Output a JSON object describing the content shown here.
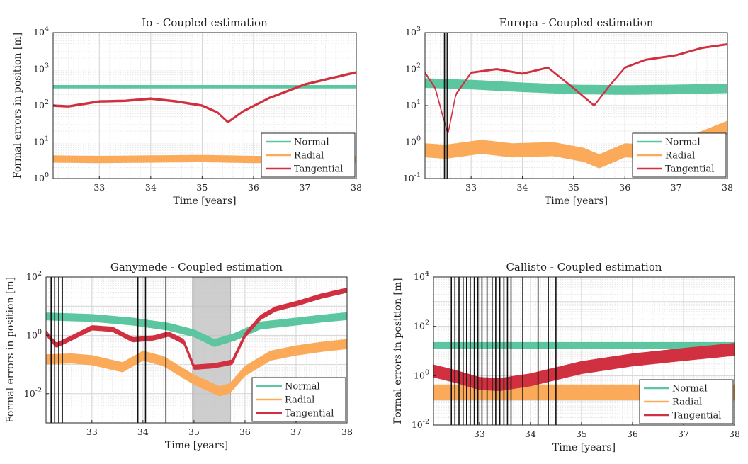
{
  "figure": {
    "background": "#ffffff"
  },
  "colors": {
    "Normal": "#5cc6a0",
    "Radial": "#fbaa5a",
    "Tangential": "#d0303f",
    "event": "#111111",
    "shade": "#bdbdbd"
  },
  "chart_data": [
    {
      "type": "line",
      "title": "Io - Coupled estimation",
      "xlabel": "Time [years]",
      "ylabel": "Formal errors in position [m]",
      "xlim": [
        32.1,
        38
      ],
      "xticks": [
        "33",
        "34",
        "35",
        "36",
        "37",
        "38"
      ],
      "ylim": [
        1,
        10000
      ],
      "yscale": "log",
      "yticks": [
        [
          1,
          "0"
        ],
        [
          10,
          "1"
        ],
        [
          100,
          "2"
        ],
        [
          1000,
          "3"
        ],
        [
          10000,
          "4"
        ]
      ],
      "grid": true,
      "legend": {
        "position": "bottom-right",
        "entries": [
          "Normal",
          "Radial",
          "Tangential"
        ]
      },
      "events": [],
      "shade": [],
      "series": [
        {
          "name": "Normal",
          "x": [
            32.1,
            38
          ],
          "y": [
            330,
            330
          ],
          "band": [
            0.92,
            1.08
          ]
        },
        {
          "name": "Radial",
          "x": [
            32.1,
            33,
            34,
            35,
            36,
            37,
            38
          ],
          "y": [
            3.5,
            3.4,
            3.5,
            3.6,
            3.4,
            3.3,
            3.4
          ],
          "band": [
            0.8,
            1.2
          ]
        },
        {
          "name": "Tangential",
          "x": [
            32.1,
            32.4,
            33,
            33.5,
            34,
            34.5,
            35,
            35.3,
            35.5,
            35.8,
            36.3,
            37,
            37.5,
            38
          ],
          "y": [
            100,
            95,
            130,
            135,
            155,
            130,
            100,
            65,
            35,
            70,
            160,
            380,
            560,
            820
          ],
          "band": [
            0.95,
            1.05
          ]
        }
      ]
    },
    {
      "type": "line",
      "title": "Europa - Coupled estimation",
      "xlabel": "Time [years]",
      "ylabel": "",
      "xlim": [
        32.1,
        38
      ],
      "xticks": [
        "33",
        "34",
        "35",
        "36",
        "37",
        "38"
      ],
      "ylim": [
        0.1,
        1000
      ],
      "yscale": "log",
      "yticks": [
        [
          0.1,
          "-1"
        ],
        [
          1,
          "0"
        ],
        [
          10,
          "1"
        ],
        [
          100,
          "2"
        ],
        [
          1000,
          "3"
        ]
      ],
      "grid": true,
      "legend": {
        "position": "bottom-right",
        "entries": [
          "Normal",
          "Radial",
          "Tangential"
        ]
      },
      "events": [
        32.48,
        32.51,
        32.54
      ],
      "shade": [],
      "series": [
        {
          "name": "Normal",
          "x": [
            32.1,
            33,
            34,
            35,
            36,
            37,
            38
          ],
          "y": [
            42,
            38,
            32,
            28,
            27,
            28,
            30
          ],
          "band": [
            0.75,
            1.3
          ]
        },
        {
          "name": "Radial",
          "x": [
            32.1,
            32.5,
            33.2,
            33.8,
            34.6,
            35.2,
            35.5,
            36,
            36.5,
            37,
            37.5,
            38
          ],
          "y": [
            0.6,
            0.55,
            0.75,
            0.6,
            0.65,
            0.45,
            0.3,
            0.6,
            0.55,
            0.75,
            1.3,
            2.5
          ],
          "band": [
            0.65,
            1.5
          ]
        },
        {
          "name": "Tangential",
          "x": [
            32.1,
            32.3,
            32.45,
            32.55,
            32.7,
            33,
            33.5,
            34,
            34.5,
            35,
            35.4,
            35.7,
            36,
            36.4,
            37,
            37.5,
            38
          ],
          "y": [
            80,
            30,
            5,
            1.7,
            20,
            80,
            100,
            75,
            110,
            30,
            10,
            35,
            110,
            180,
            240,
            380,
            480
          ],
          "band": [
            0.96,
            1.04
          ]
        }
      ]
    },
    {
      "type": "line",
      "title": "Ganymede - Coupled estimation",
      "xlabel": "Time [years]",
      "ylabel": "Formal errors in position [m]",
      "xlim": [
        32.1,
        38
      ],
      "xticks": [
        "33",
        "34",
        "35",
        "36",
        "37",
        "38"
      ],
      "ylim": [
        0.001,
        100
      ],
      "yscale": "log",
      "yticks": [
        [
          100,
          "2"
        ],
        [
          1,
          "0"
        ],
        [
          0.01,
          "-2"
        ]
      ],
      "grid": true,
      "legend": {
        "position": "bottom-right",
        "entries": [
          "Normal",
          "Radial",
          "Tangential"
        ]
      },
      "events": [
        32.2,
        32.27,
        32.35,
        32.42,
        33.9,
        34.05,
        34.45
      ],
      "shade": [
        [
          34.97,
          35.72
        ]
      ],
      "series": [
        {
          "name": "Normal",
          "x": [
            32.1,
            33,
            33.8,
            34.5,
            35,
            35.4,
            35.8,
            36.3,
            37,
            37.5,
            38
          ],
          "y": [
            4.5,
            4,
            3,
            2,
            1.2,
            0.55,
            0.9,
            2.2,
            3,
            3.8,
            4.6
          ],
          "band": [
            0.75,
            1.3
          ]
        },
        {
          "name": "Radial",
          "x": [
            32.1,
            32.6,
            33,
            33.6,
            34,
            34.4,
            35,
            35.5,
            35.7,
            36,
            36.5,
            37,
            37.5,
            38
          ],
          "y": [
            0.15,
            0.16,
            0.14,
            0.08,
            0.2,
            0.13,
            0.03,
            0.012,
            0.015,
            0.06,
            0.2,
            0.3,
            0.4,
            0.5
          ],
          "band": [
            0.7,
            1.45
          ]
        },
        {
          "name": "Tangential",
          "x": [
            32.1,
            32.3,
            32.6,
            33,
            33.4,
            33.8,
            34.2,
            34.5,
            34.8,
            35,
            35.4,
            35.75,
            36,
            36.3,
            36.6,
            37,
            37.5,
            38
          ],
          "y": [
            1.2,
            0.45,
            0.8,
            1.8,
            1.6,
            0.7,
            0.8,
            1.1,
            0.6,
            0.08,
            0.09,
            0.12,
            1,
            4,
            8,
            12,
            22,
            35
          ],
          "band": [
            0.85,
            1.2
          ]
        }
      ]
    },
    {
      "type": "line",
      "title": "Callisto - Coupled estimation",
      "xlabel": "Time [years]",
      "ylabel": "Formal errors in position [m]",
      "xlim": [
        32.1,
        38
      ],
      "xticks": [
        "33",
        "34",
        "35",
        "36",
        "37",
        "38"
      ],
      "ylim": [
        0.01,
        10000
      ],
      "yscale": "log",
      "yticks": [
        [
          10000,
          "4"
        ],
        [
          100,
          "2"
        ],
        [
          1,
          "0"
        ],
        [
          0.01,
          "-2"
        ]
      ],
      "grid": true,
      "legend": {
        "position": "bottom-right",
        "entries": [
          "Normal",
          "Radial",
          "Tangential"
        ]
      },
      "events": [
        32.45,
        32.52,
        32.6,
        32.68,
        32.75,
        32.82,
        32.9,
        32.97,
        33.05,
        33.15,
        33.25,
        33.32,
        33.4,
        33.48,
        33.55,
        33.62,
        33.85,
        34.15,
        34.35,
        34.5
      ],
      "shade": [],
      "series": [
        {
          "name": "Normal",
          "x": [
            32.1,
            38
          ],
          "y": [
            17,
            17
          ],
          "band": [
            0.75,
            1.3
          ]
        },
        {
          "name": "Radial",
          "x": [
            32.1,
            38
          ],
          "y": [
            0.25,
            0.25
          ],
          "band": [
            0.45,
            1.7
          ]
        },
        {
          "name": "Tangential",
          "x": [
            32.1,
            32.5,
            33,
            33.4,
            34,
            35,
            36,
            37,
            38
          ],
          "y": [
            1.6,
            1.0,
            0.5,
            0.45,
            0.7,
            2.2,
            4.5,
            7.5,
            12
          ],
          "band": [
            0.55,
            1.7
          ]
        }
      ]
    }
  ]
}
